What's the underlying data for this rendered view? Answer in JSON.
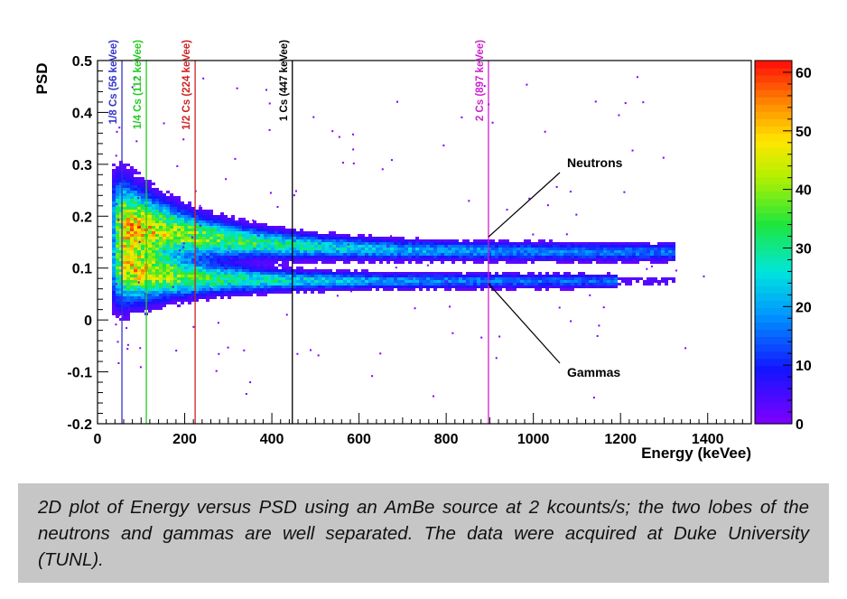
{
  "chart_data": {
    "type": "heatmap",
    "xlabel": "Energy (keVee)",
    "ylabel": "PSD",
    "xlim": [
      0,
      1500
    ],
    "ylim": [
      -0.2,
      0.5
    ],
    "x_ticks": [
      0,
      200,
      400,
      600,
      800,
      1000,
      1200,
      1400
    ],
    "y_ticks": [
      -0.2,
      -0.1,
      0,
      0.1,
      0.2,
      0.3,
      0.4,
      0.5
    ],
    "y_tick_labels": [
      "-0.2",
      "-0.1",
      "0",
      "0.1",
      "0.2",
      "0.3",
      "0.4",
      "0.5"
    ],
    "colorbar": {
      "min": 0,
      "max": 62,
      "ticks": [
        0,
        10,
        20,
        30,
        40,
        50,
        60
      ]
    },
    "reference_lines": [
      {
        "label": "1/8 Cs (56 keVee)",
        "energy": 56,
        "color": "#3333cc"
      },
      {
        "label": "1/4 Cs (112 keVee)",
        "energy": 112,
        "color": "#22cc22"
      },
      {
        "label": "1/2 Cs (224 keVee)",
        "energy": 224,
        "color": "#cc2222"
      },
      {
        "label": "1 Cs (447 keVee)",
        "energy": 447,
        "color": "#000000"
      },
      {
        "label": "2 Cs (897 keVee)",
        "energy": 897,
        "color": "#cc22cc"
      }
    ],
    "bands": [
      {
        "name": "Neutrons",
        "psd": 0.15
      },
      {
        "name": "Gammas",
        "psd": 0.07
      }
    ],
    "annotations": [
      {
        "text": "Neutrons",
        "points_to": [
          897,
          0.16
        ]
      },
      {
        "text": "Gammas",
        "points_to": [
          897,
          0.07
        ]
      }
    ]
  },
  "caption": "2D plot of Energy versus PSD using an AmBe source at 2 kcounts/s; the two lobes of the neutrons and gammas are well separated. The data were acquired at Duke University (TUNL)."
}
